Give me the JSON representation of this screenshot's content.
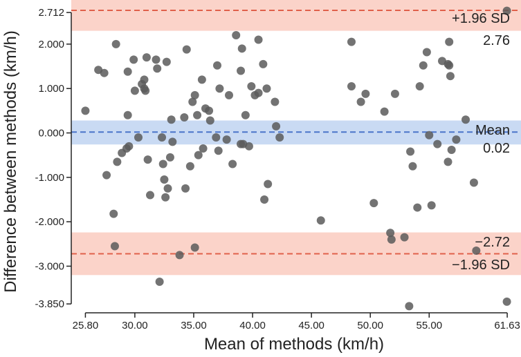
{
  "chart_data": {
    "type": "scatter",
    "title": "",
    "xlabel": "Mean of methods (km/h)",
    "ylabel": "Difference between methods (km/h)",
    "xlim": [
      24.6,
      62.8
    ],
    "ylim": [
      -4.05,
      2.9
    ],
    "x_ticks": [
      25.8,
      30.0,
      35.0,
      40.0,
      45.0,
      50.0,
      55.0,
      61.63
    ],
    "x_tick_labels": [
      "25.80",
      "30.00",
      "35.00",
      "40.00",
      "45.00",
      "50.00",
      "55.00",
      "61.63"
    ],
    "y_ticks": [
      2.712,
      2.0,
      1.0,
      0.0,
      -1.0,
      -2.0,
      -3.0,
      -3.85
    ],
    "y_tick_labels": [
      "2.712",
      "2.000",
      "1.000",
      "0.000",
      "-1.000",
      "-2.000",
      "-3.000",
      "-3.850"
    ],
    "mean": 0.02,
    "upper_loa": 2.76,
    "lower_loa": -2.72,
    "mean_ci": [
      -0.26,
      0.28
    ],
    "upper_ci": [
      2.3,
      3.2
    ],
    "lower_ci": [
      -3.2,
      -2.24
    ],
    "colors": {
      "mean_line": "#4a74c9",
      "mean_band": "#c9daf3",
      "loa_line": "#e0604a",
      "loa_band": "#fbd3c9",
      "points": "#5a5a5a"
    },
    "annotations": {
      "upper_sd_label": "+1.96 SD",
      "upper_value_label": "2.76",
      "mean_label": "Mean",
      "mean_value_label": "0.02",
      "lower_value_label": "−2.72",
      "lower_sd_label": "−1.96 SD"
    },
    "points": [
      [
        25.8,
        0.5
      ],
      [
        26.9,
        1.42
      ],
      [
        27.4,
        1.35
      ],
      [
        27.6,
        -0.95
      ],
      [
        28.2,
        -1.82
      ],
      [
        28.3,
        -2.55
      ],
      [
        28.4,
        2.0
      ],
      [
        28.5,
        -0.65
      ],
      [
        28.9,
        -0.45
      ],
      [
        29.3,
        -0.35
      ],
      [
        29.4,
        1.38
      ],
      [
        29.4,
        0.4
      ],
      [
        29.5,
        -0.3
      ],
      [
        29.9,
        1.65
      ],
      [
        30.0,
        0.95
      ],
      [
        30.3,
        -0.1
      ],
      [
        30.6,
        1.1
      ],
      [
        30.8,
        1.2
      ],
      [
        30.8,
        1.0
      ],
      [
        30.9,
        0.95
      ],
      [
        31.0,
        1.7
      ],
      [
        31.1,
        -0.6
      ],
      [
        31.3,
        -1.4
      ],
      [
        31.8,
        1.65
      ],
      [
        31.9,
        1.45
      ],
      [
        32.1,
        -3.35
      ],
      [
        32.3,
        -0.1
      ],
      [
        32.4,
        -0.7
      ],
      [
        32.5,
        -1.05
      ],
      [
        32.6,
        -1.45
      ],
      [
        32.7,
        1.6
      ],
      [
        32.8,
        -1.25
      ],
      [
        33.0,
        -0.55
      ],
      [
        33.1,
        0.3
      ],
      [
        33.2,
        -0.2
      ],
      [
        33.8,
        -2.75
      ],
      [
        34.2,
        0.35
      ],
      [
        34.3,
        -1.25
      ],
      [
        34.4,
        1.88
      ],
      [
        34.7,
        -0.75
      ],
      [
        34.9,
        0.7
      ],
      [
        35.1,
        -2.58
      ],
      [
        35.1,
        0.85
      ],
      [
        35.3,
        0.4
      ],
      [
        35.4,
        -0.5
      ],
      [
        35.7,
        1.2
      ],
      [
        35.8,
        -0.35
      ],
      [
        36.0,
        0.55
      ],
      [
        36.3,
        0.5
      ],
      [
        36.4,
        0.28
      ],
      [
        36.9,
        -0.1
      ],
      [
        37.0,
        1.52
      ],
      [
        37.1,
        -0.4
      ],
      [
        37.2,
        1.0
      ],
      [
        37.8,
        -0.15
      ],
      [
        38.0,
        0.85
      ],
      [
        38.3,
        -0.7
      ],
      [
        38.6,
        2.2
      ],
      [
        39.0,
        -0.25
      ],
      [
        39.0,
        1.4
      ],
      [
        39.1,
        1.9
      ],
      [
        39.2,
        -0.25
      ],
      [
        39.4,
        0.4
      ],
      [
        39.7,
        -0.3
      ],
      [
        39.9,
        1.05
      ],
      [
        40.2,
        0.85
      ],
      [
        40.5,
        0.9
      ],
      [
        40.5,
        2.1
      ],
      [
        40.9,
        1.55
      ],
      [
        41.0,
        -1.5
      ],
      [
        41.2,
        1.0
      ],
      [
        41.3,
        -1.15
      ],
      [
        41.9,
        0.7
      ],
      [
        42.0,
        0.15
      ],
      [
        42.3,
        -0.1
      ],
      [
        45.8,
        -1.97
      ],
      [
        48.4,
        2.05
      ],
      [
        48.4,
        1.05
      ],
      [
        49.2,
        0.7
      ],
      [
        49.6,
        0.88
      ],
      [
        50.3,
        -1.58
      ],
      [
        51.2,
        0.48
      ],
      [
        51.7,
        -2.25
      ],
      [
        51.8,
        -2.4
      ],
      [
        52.1,
        0.88
      ],
      [
        52.9,
        -2.35
      ],
      [
        53.3,
        -3.9
      ],
      [
        53.4,
        -0.42
      ],
      [
        53.6,
        -0.75
      ],
      [
        54.0,
        -1.68
      ],
      [
        54.2,
        1.05
      ],
      [
        54.5,
        1.52
      ],
      [
        54.8,
        1.82
      ],
      [
        55.0,
        -0.05
      ],
      [
        55.2,
        -1.63
      ],
      [
        55.7,
        -0.25
      ],
      [
        56.1,
        1.62
      ],
      [
        56.6,
        1.55
      ],
      [
        56.7,
        1.52
      ],
      [
        56.7,
        2.05
      ],
      [
        56.8,
        1.28
      ],
      [
        56.9,
        -0.38
      ],
      [
        57.3,
        -0.15
      ],
      [
        58.1,
        0.3
      ],
      [
        58.8,
        -1.12
      ],
      [
        59.0,
        -2.65
      ],
      [
        61.6,
        2.75
      ],
      [
        61.6,
        -3.8
      ],
      [
        56.6,
        -0.65
      ]
    ]
  }
}
